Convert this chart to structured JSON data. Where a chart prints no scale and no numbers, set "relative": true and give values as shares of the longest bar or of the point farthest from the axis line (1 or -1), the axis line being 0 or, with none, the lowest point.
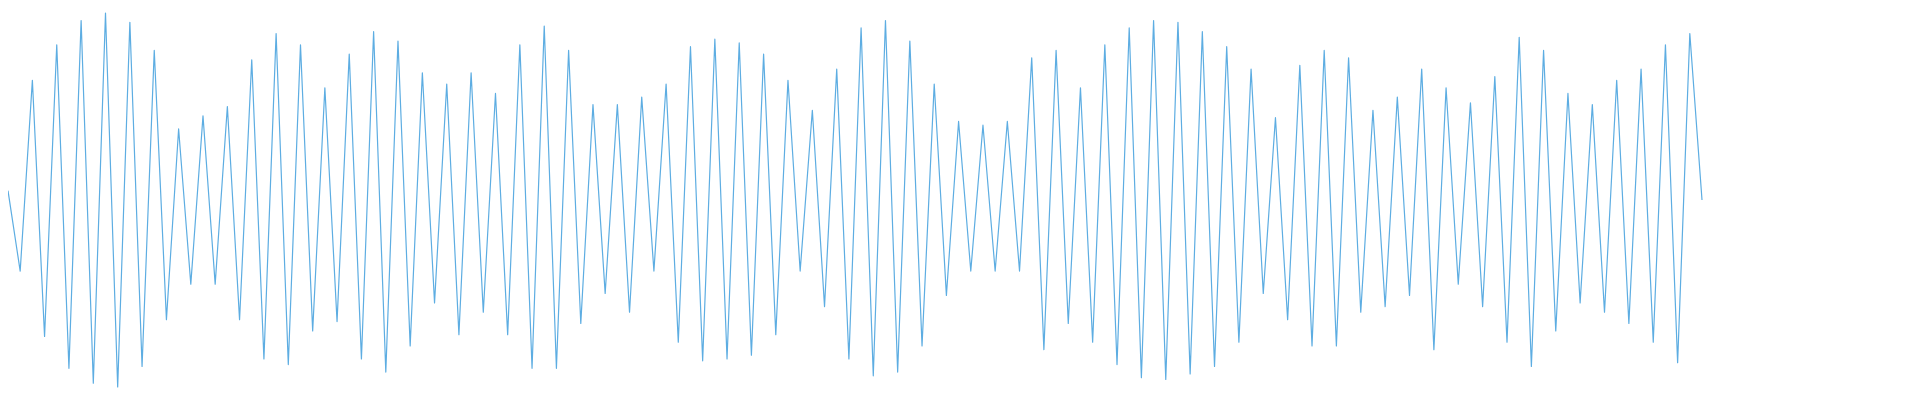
{
  "chart_data": {
    "type": "line",
    "relative": true,
    "color": "#5dade2",
    "line_style": "solid",
    "categories": [
      null,
      null,
      null,
      null,
      null,
      null,
      null,
      null,
      null,
      null,
      null,
      null,
      null,
      null,
      null,
      null,
      null,
      null,
      null,
      null,
      null,
      null,
      null,
      null,
      null,
      null,
      null,
      null,
      null,
      null,
      null,
      null,
      null,
      null,
      null,
      null,
      null,
      null,
      null,
      null,
      null,
      null,
      null,
      null,
      null,
      null,
      null,
      null,
      null,
      null,
      null,
      null,
      null,
      null,
      null,
      null,
      null,
      null,
      null,
      null,
      null,
      null,
      null,
      null,
      null,
      null,
      null,
      null,
      null,
      null,
      null,
      null,
      null,
      null,
      null,
      null,
      null,
      null,
      null,
      null,
      null,
      null,
      null,
      null,
      null,
      null,
      null,
      null,
      null,
      null,
      null,
      null,
      null,
      null,
      null,
      null,
      null,
      null,
      null,
      null,
      null,
      null,
      null,
      null,
      null,
      null,
      null,
      null,
      null,
      null,
      null,
      null,
      null,
      null,
      null,
      null,
      null,
      null,
      null,
      null,
      null,
      null,
      null,
      null,
      null,
      null,
      null,
      null,
      null,
      null,
      null,
      null,
      null,
      null,
      null,
      null,
      null,
      null,
      null,
      null
    ],
    "values": [
      0.525,
      0.31,
      0.82,
      0.135,
      0.915,
      0.05,
      0.98,
      0.01,
      1,
      0,
      0.975,
      0.055,
      0.9,
      0.18,
      0.69,
      0.275,
      0.725,
      0.275,
      0.75,
      0.18,
      0.875,
      0.075,
      0.945,
      0.06,
      0.915,
      0.15,
      0.8,
      0.175,
      0.89,
      0.075,
      0.95,
      0.04,
      0.925,
      0.11,
      0.84,
      0.225,
      0.81,
      0.14,
      0.84,
      0.2,
      0.785,
      0.14,
      0.915,
      0.05,
      0.965,
      0.05,
      0.9,
      0.17,
      0.755,
      0.25,
      0.755,
      0.2,
      0.775,
      0.31,
      0.81,
      0.12,
      0.91,
      0.07,
      0.93,
      0.075,
      0.92,
      0.085,
      0.89,
      0.14,
      0.82,
      0.31,
      0.74,
      0.215,
      0.85,
      0.075,
      0.96,
      0.03,
      0.98,
      0.04,
      0.925,
      0.11,
      0.81,
      0.245,
      0.71,
      0.31,
      0.7,
      0.31,
      0.71,
      0.31,
      0.88,
      0.1,
      0.9,
      0.17,
      0.8,
      0.12,
      0.915,
      0.06,
      0.96,
      0.025,
      0.98,
      0.02,
      0.975,
      0.035,
      0.95,
      0.055,
      0.91,
      0.12,
      0.85,
      0.25,
      0.72,
      0.18,
      0.86,
      0.11,
      0.9,
      0.11,
      0.88,
      0.2,
      0.74,
      0.215,
      0.775,
      0.245,
      0.85,
      0.1,
      0.8,
      0.275,
      0.76,
      0.215,
      0.83,
      0.12,
      0.935,
      0.055,
      0.9,
      0.15,
      0.785,
      0.225,
      0.755,
      0.2,
      0.82,
      0.17,
      0.85,
      0.12,
      0.915,
      0.065,
      0.945,
      0.5
    ]
  }
}
